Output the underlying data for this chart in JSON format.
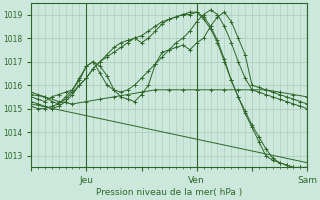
{
  "background_color": "#cce8dc",
  "plot_bg_color": "#cce8dc",
  "grid_color": "#aac8b8",
  "line_color": "#2d6628",
  "marker_color": "#2d6628",
  "ylim": [
    1012.5,
    1019.5
  ],
  "xlim": [
    0,
    120
  ],
  "xlabel": "Pression niveau de la mer( hPa )",
  "tick_labels_x": [
    "",
    "Jeu",
    "",
    "Ven",
    "",
    "Sam"
  ],
  "tick_positions_x": [
    0,
    24,
    48,
    72,
    96,
    120
  ],
  "yticks": [
    1013,
    1014,
    1015,
    1016,
    1017,
    1018,
    1019
  ],
  "series": [
    {
      "x": [
        0,
        3,
        6,
        9,
        12,
        15,
        18,
        21,
        24,
        27,
        30,
        33,
        36,
        39,
        42,
        45,
        48,
        51,
        54,
        57,
        60,
        63,
        66,
        69,
        72,
        75,
        78,
        81,
        84,
        87,
        90,
        93,
        96,
        99,
        102,
        105,
        108,
        111,
        114,
        117,
        120
      ],
      "y": [
        1015.5,
        1015.4,
        1015.3,
        1015.5,
        1015.6,
        1015.7,
        1015.8,
        1016.2,
        1016.8,
        1017.0,
        1016.8,
        1016.4,
        1015.8,
        1015.5,
        1015.4,
        1015.3,
        1015.6,
        1016.0,
        1016.9,
        1017.4,
        1017.5,
        1017.6,
        1017.7,
        1017.5,
        1017.8,
        1018.0,
        1018.5,
        1018.9,
        1019.1,
        1018.7,
        1018.0,
        1017.3,
        1016.0,
        1015.9,
        1015.8,
        1015.7,
        1015.6,
        1015.5,
        1015.4,
        1015.3,
        1015.2
      ],
      "marker": "+"
    },
    {
      "x": [
        0,
        3,
        6,
        9,
        12,
        15,
        18,
        21,
        24,
        27,
        30,
        33,
        36,
        39,
        42,
        45,
        48,
        51,
        54,
        57,
        60,
        63,
        66,
        69,
        72,
        75,
        78,
        81,
        84,
        87,
        90,
        93,
        96,
        99,
        102,
        105,
        108,
        111,
        114,
        117,
        120
      ],
      "y": [
        1015.3,
        1015.2,
        1015.1,
        1015.0,
        1015.1,
        1015.3,
        1015.6,
        1016.0,
        1016.3,
        1016.7,
        1017.0,
        1017.3,
        1017.6,
        1017.8,
        1017.9,
        1018.0,
        1017.8,
        1018.0,
        1018.3,
        1018.6,
        1018.8,
        1018.9,
        1019.0,
        1019.1,
        1019.1,
        1018.9,
        1018.5,
        1017.9,
        1017.1,
        1016.2,
        1015.5,
        1014.9,
        1014.3,
        1013.8,
        1013.3,
        1012.9,
        1012.7,
        1012.6,
        1012.5,
        1012.5,
        1012.5
      ],
      "marker": "+"
    },
    {
      "x": [
        0,
        3,
        6,
        9,
        12,
        15,
        18,
        21,
        24,
        27,
        30,
        33,
        36,
        39,
        42,
        45,
        48,
        51,
        54,
        57,
        60,
        63,
        66,
        69,
        72,
        75,
        78,
        81,
        84,
        87,
        90,
        93,
        96,
        99,
        102,
        105,
        108,
        111,
        114,
        117,
        120
      ],
      "y": [
        1015.1,
        1015.0,
        1015.0,
        1015.1,
        1015.2,
        1015.4,
        1015.7,
        1016.0,
        1016.3,
        1016.7,
        1017.0,
        1017.2,
        1017.4,
        1017.6,
        1017.8,
        1018.0,
        1018.1,
        1018.3,
        1018.5,
        1018.7,
        1018.8,
        1018.9,
        1019.0,
        1019.0,
        1019.1,
        1018.8,
        1018.4,
        1017.8,
        1017.0,
        1016.2,
        1015.5,
        1014.8,
        1014.2,
        1013.6,
        1013.0,
        1012.8,
        1012.7,
        1012.6,
        1012.5,
        1012.5,
        1012.5
      ],
      "marker": "+"
    },
    {
      "x": [
        0,
        6,
        12,
        18,
        24,
        30,
        36,
        42,
        48,
        54,
        60,
        66,
        72,
        78,
        84,
        90,
        96,
        102,
        108,
        114,
        120
      ],
      "y": [
        1015.6,
        1015.5,
        1015.3,
        1015.2,
        1015.3,
        1015.4,
        1015.5,
        1015.6,
        1015.7,
        1015.8,
        1015.8,
        1015.8,
        1015.8,
        1015.8,
        1015.8,
        1015.8,
        1015.8,
        1015.8,
        1015.7,
        1015.6,
        1015.5
      ],
      "marker": "+"
    },
    {
      "x": [
        0,
        3,
        6,
        9,
        12,
        15,
        18,
        21,
        24,
        27,
        30,
        33,
        36,
        39,
        42,
        45,
        48,
        51,
        54,
        57,
        60,
        63,
        66,
        69,
        72,
        75,
        78,
        81,
        84,
        87,
        90,
        93,
        96,
        99,
        102,
        105,
        108,
        111,
        114,
        117,
        120
      ],
      "y": [
        1015.7,
        1015.6,
        1015.5,
        1015.3,
        1015.2,
        1015.5,
        1015.8,
        1016.3,
        1016.8,
        1017.0,
        1016.5,
        1016.0,
        1015.8,
        1015.7,
        1015.8,
        1016.0,
        1016.3,
        1016.6,
        1016.9,
        1017.2,
        1017.5,
        1017.8,
        1018.0,
        1018.3,
        1018.7,
        1019.0,
        1019.2,
        1019.0,
        1018.5,
        1017.8,
        1017.0,
        1016.3,
        1015.8,
        1015.7,
        1015.6,
        1015.5,
        1015.4,
        1015.3,
        1015.2,
        1015.1,
        1015.0
      ],
      "marker": "+"
    },
    {
      "x": [
        0,
        120
      ],
      "y": [
        1015.2,
        1012.7
      ],
      "marker": null
    }
  ]
}
